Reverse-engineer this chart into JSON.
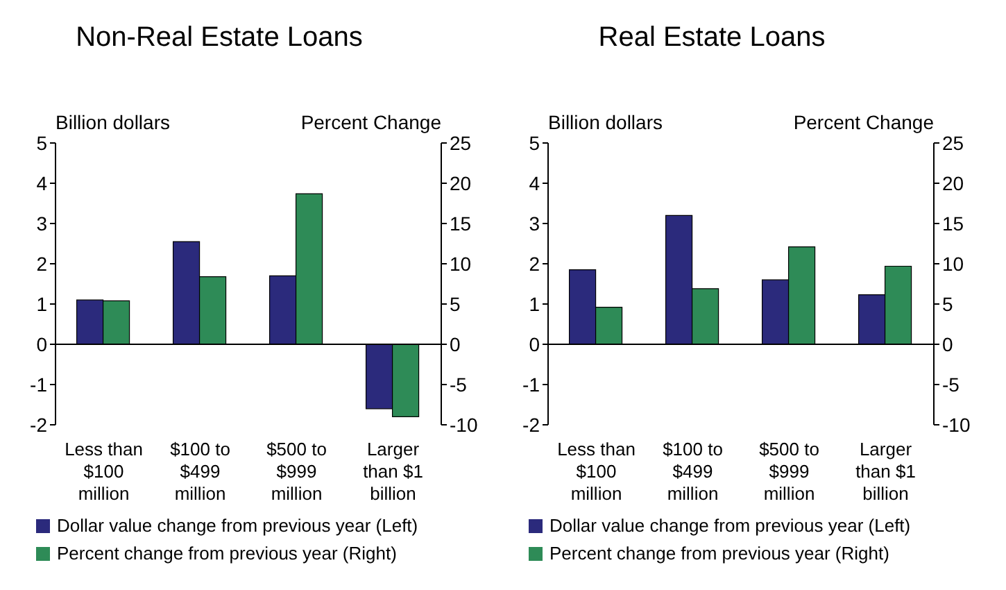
{
  "chart_data": [
    {
      "type": "bar",
      "title": "Non-Real Estate Loans",
      "ylabel": "Billion dollars",
      "y2label": "Percent Change",
      "categories": [
        "Less than $100 million",
        "$100 to $499 million",
        "$500 to $999 million",
        "Larger than $1 billion"
      ],
      "series": [
        {
          "name": "Dollar value change from previous year (Left)",
          "color": "#2b2a7c",
          "values": [
            1.1,
            2.55,
            1.7,
            -1.6
          ]
        },
        {
          "name": "Percent change from previous year (Right)",
          "color": "#2e8b57",
          "values": [
            5.4,
            8.4,
            18.7,
            -9
          ],
          "axis": "y2"
        }
      ],
      "ylim": [
        -2,
        5
      ],
      "yticks": [
        -2,
        -1,
        0,
        1,
        2,
        3,
        4,
        5
      ],
      "y2lim": [
        -10,
        25
      ],
      "y2ticks": [
        -10,
        -5,
        0,
        5,
        10,
        15,
        20,
        25
      ],
      "ref_lines": [
        {
          "axis": "y",
          "value": 0,
          "color": "#000000"
        }
      ],
      "grid": false,
      "legend": "bottom"
    },
    {
      "type": "bar",
      "title": "Real Estate Loans",
      "ylabel": "Billion dollars",
      "y2label": "Percent Change",
      "categories": [
        "Less than $100 million",
        "$100 to $499 million",
        "$500 to $999 million",
        "Larger than $1 billion"
      ],
      "series": [
        {
          "name": "Dollar value change from previous year (Left)",
          "color": "#2b2a7c",
          "values": [
            1.85,
            3.2,
            1.6,
            1.23
          ]
        },
        {
          "name": "Percent change from previous year (Right)",
          "color": "#2e8b57",
          "values": [
            4.6,
            6.9,
            12.1,
            9.7
          ],
          "axis": "y2"
        }
      ],
      "ylim": [
        -2,
        5
      ],
      "yticks": [
        -2,
        -1,
        0,
        1,
        2,
        3,
        4,
        5
      ],
      "y2lim": [
        -10,
        25
      ],
      "y2ticks": [
        -10,
        -5,
        0,
        5,
        10,
        15,
        20,
        25
      ],
      "ref_lines": [
        {
          "axis": "y",
          "value": 0,
          "color": "#000000"
        }
      ],
      "grid": false,
      "legend": "bottom"
    }
  ]
}
